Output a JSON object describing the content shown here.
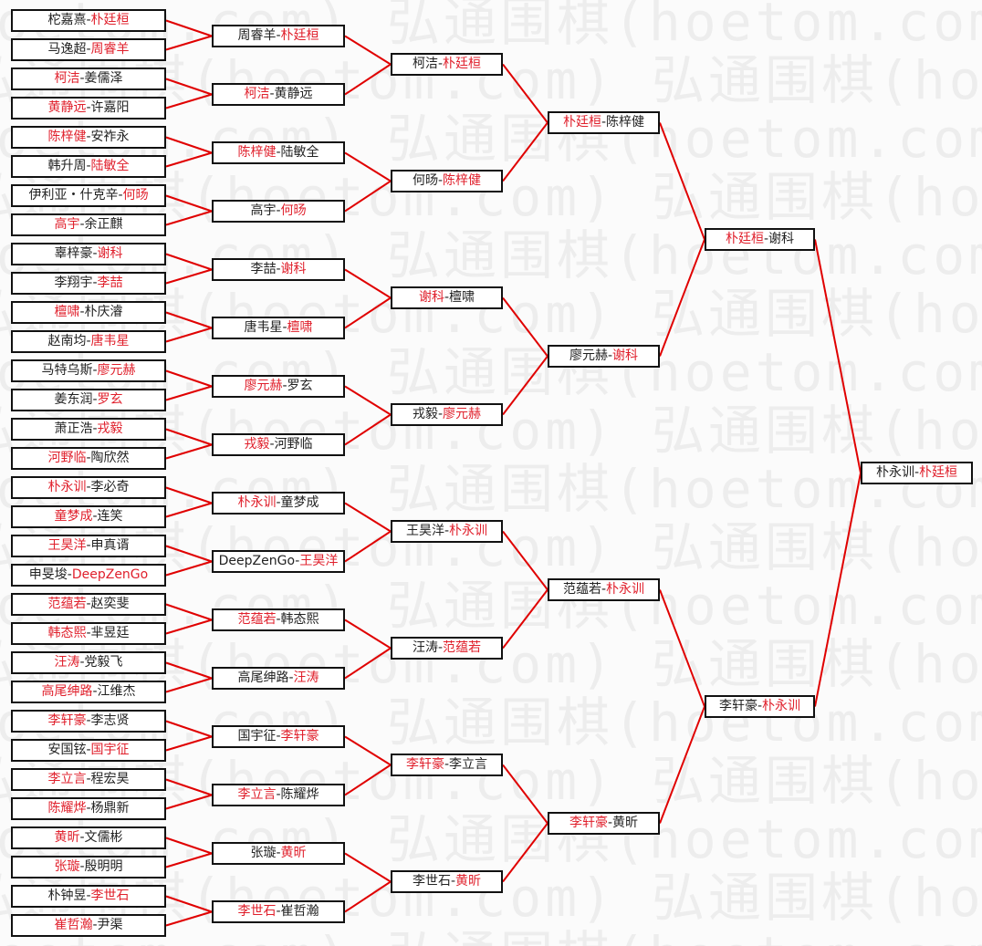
{
  "watermark": "弘通围棋(hoetom.com)",
  "colors": {
    "winner": "#e0202c",
    "line": "#e00000",
    "text": "#222222",
    "border": "#111111"
  },
  "rounds": [
    {
      "matches": [
        {
          "left": "柁嘉熹",
          "right": "朴廷桓",
          "winner": "right"
        },
        {
          "left": "马逸超",
          "right": "周睿羊",
          "winner": "right"
        },
        {
          "left": "柯洁",
          "right": "姜儒泽",
          "winner": "left"
        },
        {
          "left": "黄静远",
          "right": "许嘉阳",
          "winner": "left"
        },
        {
          "left": "陈梓健",
          "right": "安祚永",
          "winner": "left"
        },
        {
          "left": "韩升周",
          "right": "陆敏全",
          "winner": "right"
        },
        {
          "left": "伊利亚・什克辛",
          "right": "何旸",
          "winner": "right"
        },
        {
          "left": "高宇",
          "right": "余正麒",
          "winner": "left"
        },
        {
          "left": "辜梓豪",
          "right": "谢科",
          "winner": "right"
        },
        {
          "left": "李翔宇",
          "right": "李喆",
          "winner": "right"
        },
        {
          "left": "檀啸",
          "right": "朴庆濬",
          "winner": "left"
        },
        {
          "left": "赵南均",
          "right": "唐韦星",
          "winner": "right"
        },
        {
          "left": "马特乌斯",
          "right": "廖元赫",
          "winner": "right"
        },
        {
          "left": "姜东润",
          "right": "罗玄",
          "winner": "right"
        },
        {
          "left": "萧正浩",
          "right": "戎毅",
          "winner": "right"
        },
        {
          "left": "河野临",
          "right": "陶欣然",
          "winner": "left"
        },
        {
          "left": "朴永训",
          "right": "李必奇",
          "winner": "left"
        },
        {
          "left": "童梦成",
          "right": "连笑",
          "winner": "left"
        },
        {
          "left": "王昊洋",
          "right": "申真谞",
          "winner": "left"
        },
        {
          "left": "申旻埈",
          "right": "DeepZenGo",
          "winner": "right"
        },
        {
          "left": "范蕴若",
          "right": "赵奕斐",
          "winner": "left"
        },
        {
          "left": "韩态熙",
          "right": "芈昱廷",
          "winner": "left"
        },
        {
          "left": "汪涛",
          "right": "党毅飞",
          "winner": "left"
        },
        {
          "left": "高尾绅路",
          "right": "江维杰",
          "winner": "left"
        },
        {
          "left": "李轩豪",
          "right": "李志贤",
          "winner": "left"
        },
        {
          "left": "安国铉",
          "right": "国宇征",
          "winner": "right"
        },
        {
          "left": "李立言",
          "right": "程宏昊",
          "winner": "left"
        },
        {
          "left": "陈耀烨",
          "right": "杨鼎新",
          "winner": "left"
        },
        {
          "left": "黄昕",
          "right": "文儒彬",
          "winner": "left"
        },
        {
          "left": "张璇",
          "right": "殷明明",
          "winner": "left"
        },
        {
          "left": "朴钟昱",
          "right": "李世石",
          "winner": "right"
        },
        {
          "left": "崔哲瀚",
          "right": "尹渠",
          "winner": "left"
        }
      ]
    },
    {
      "matches": [
        {
          "left": "周睿羊",
          "right": "朴廷桓",
          "winner": "right"
        },
        {
          "left": "柯洁",
          "right": "黄静远",
          "winner": "left"
        },
        {
          "left": "陈梓健",
          "right": "陆敏全",
          "winner": "left"
        },
        {
          "left": "高宇",
          "right": "何旸",
          "winner": "right"
        },
        {
          "left": "李喆",
          "right": "谢科",
          "winner": "right"
        },
        {
          "left": "唐韦星",
          "right": "檀啸",
          "winner": "right"
        },
        {
          "left": "廖元赫",
          "right": "罗玄",
          "winner": "left"
        },
        {
          "left": "戎毅",
          "right": "河野临",
          "winner": "left"
        },
        {
          "left": "朴永训",
          "right": "童梦成",
          "winner": "left"
        },
        {
          "left": "DeepZenGo",
          "right": "王昊洋",
          "winner": "right"
        },
        {
          "left": "范蕴若",
          "right": "韩态熙",
          "winner": "left"
        },
        {
          "left": "高尾绅路",
          "right": "汪涛",
          "winner": "right"
        },
        {
          "left": "国宇征",
          "right": "李轩豪",
          "winner": "right"
        },
        {
          "left": "李立言",
          "right": "陈耀烨",
          "winner": "left"
        },
        {
          "left": "张璇",
          "right": "黄昕",
          "winner": "right"
        },
        {
          "left": "李世石",
          "right": "崔哲瀚",
          "winner": "left"
        }
      ]
    },
    {
      "matches": [
        {
          "left": "柯洁",
          "right": "朴廷桓",
          "winner": "right"
        },
        {
          "left": "何旸",
          "right": "陈梓健",
          "winner": "right"
        },
        {
          "left": "谢科",
          "right": "檀啸",
          "winner": "left"
        },
        {
          "left": "戎毅",
          "right": "廖元赫",
          "winner": "right"
        },
        {
          "left": "王昊洋",
          "right": "朴永训",
          "winner": "right"
        },
        {
          "left": "汪涛",
          "right": "范蕴若",
          "winner": "right"
        },
        {
          "left": "李轩豪",
          "right": "李立言",
          "winner": "left"
        },
        {
          "left": "李世石",
          "right": "黄昕",
          "winner": "right"
        }
      ]
    },
    {
      "matches": [
        {
          "left": "朴廷桓",
          "right": "陈梓健",
          "winner": "left"
        },
        {
          "left": "廖元赫",
          "right": "谢科",
          "winner": "right"
        },
        {
          "left": "范蕴若",
          "right": "朴永训",
          "winner": "right"
        },
        {
          "left": "李轩豪",
          "right": "黄昕",
          "winner": "left"
        }
      ]
    },
    {
      "matches": [
        {
          "left": "朴廷桓",
          "right": "谢科",
          "winner": "left"
        },
        {
          "left": "李轩豪",
          "right": "朴永训",
          "winner": "right"
        }
      ]
    },
    {
      "matches": [
        {
          "left": "朴永训",
          "right": "朴廷桓",
          "winner": "right"
        }
      ]
    }
  ]
}
